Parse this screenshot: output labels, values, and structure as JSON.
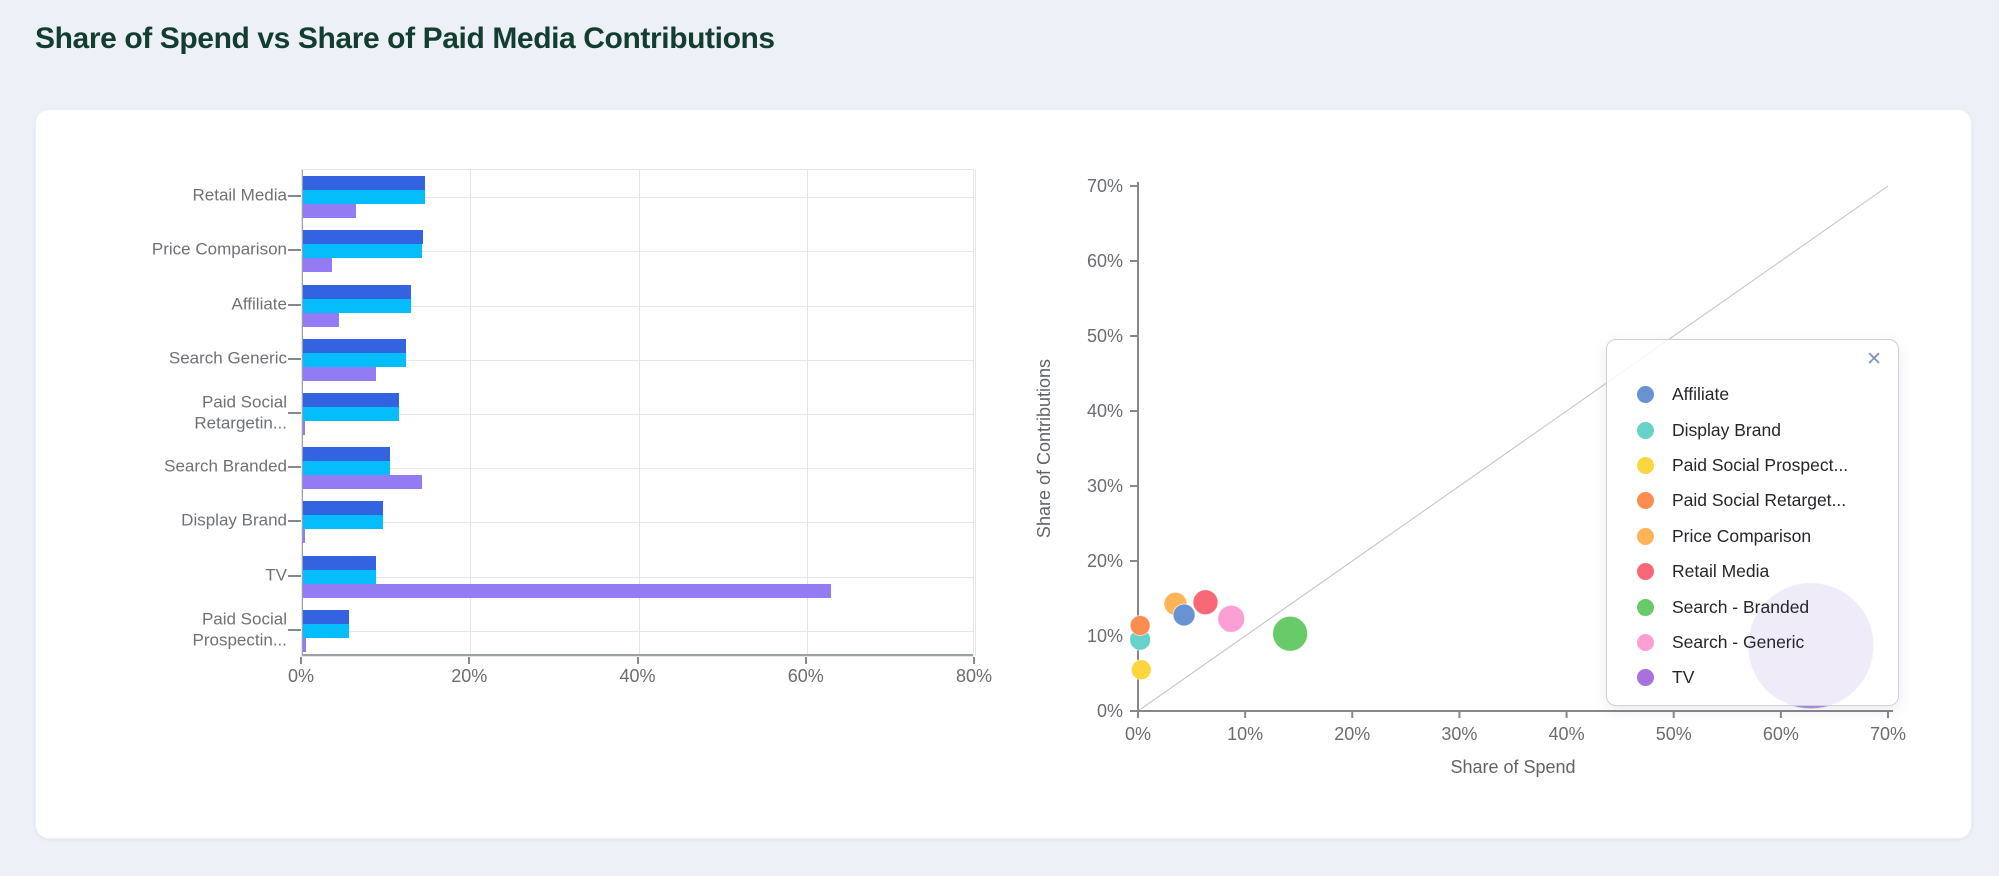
{
  "page": {
    "title": "Share of Spend vs Share of Paid Media Contributions",
    "background_color": "#edf1f7",
    "title_color": "#133d2e",
    "card_color": "#ffffff"
  },
  "chart_data": [
    {
      "type": "bar",
      "orientation": "horizontal",
      "title": "",
      "categories": [
        "Retail Media",
        "Price Comparison",
        "Affiliate",
        "Search Generic",
        "Paid Social Retargetin...",
        "Search Branded",
        "Display Brand",
        "TV",
        "Paid Social Prospectin..."
      ],
      "series": [
        {
          "id": "contribution-blue",
          "color": "#3463e2",
          "values": [
            14.5,
            14.3,
            12.8,
            12.3,
            11.4,
            10.3,
            9.5,
            8.7,
            5.5
          ]
        },
        {
          "id": "contribution-cyan",
          "color": "#05bdfb",
          "values": [
            14.5,
            14.2,
            12.8,
            12.3,
            11.4,
            10.3,
            9.5,
            8.7,
            5.5
          ]
        },
        {
          "id": "spend-purple",
          "color": "#937bf4",
          "values": [
            6.3,
            3.5,
            4.3,
            8.7,
            0.2,
            14.2,
            0.2,
            62.8,
            0.3
          ]
        }
      ],
      "xlim": [
        0,
        80
      ],
      "x_ticks": [
        0,
        20,
        40,
        60,
        80
      ],
      "x_tick_labels": [
        "0%",
        "20%",
        "40%",
        "60%",
        "80%"
      ],
      "grid": true,
      "xlabel": "",
      "ylabel": ""
    },
    {
      "type": "scatter",
      "xlabel": "Share of Spend",
      "ylabel": "Share of Contributions",
      "xlim": [
        0,
        70
      ],
      "ylim": [
        0,
        70
      ],
      "x_ticks": [
        0,
        10,
        20,
        30,
        40,
        50,
        60,
        70
      ],
      "x_tick_labels": [
        "0%",
        "10%",
        "20%",
        "30%",
        "40%",
        "50%",
        "60%",
        "70%"
      ],
      "y_ticks": [
        0,
        10,
        20,
        30,
        40,
        50,
        60,
        70
      ],
      "y_tick_labels": [
        "0%",
        "10%",
        "20%",
        "30%",
        "40%",
        "50%",
        "60%",
        "70%"
      ],
      "grid": false,
      "diagonal_reference_line": true,
      "points": [
        {
          "label": "Affiliate",
          "x": 4.3,
          "y": 12.8,
          "r": 11,
          "color": "#6992d2"
        },
        {
          "label": "Display Brand",
          "x": 0.2,
          "y": 9.5,
          "r": 10.5,
          "color": "#66d2c8"
        },
        {
          "label": "Paid Social Prospect...",
          "x": 0.3,
          "y": 5.5,
          "r": 10,
          "color": "#fdd53e"
        },
        {
          "label": "Paid Social Retarget...",
          "x": 0.2,
          "y": 11.4,
          "r": 10,
          "color": "#fb8d50"
        },
        {
          "label": "Price Comparison",
          "x": 3.5,
          "y": 14.3,
          "r": 11.5,
          "color": "#fdb457"
        },
        {
          "label": "Retail Media",
          "x": 6.3,
          "y": 14.5,
          "r": 12.5,
          "color": "#f96876"
        },
        {
          "label": "Search - Branded",
          "x": 14.2,
          "y": 10.3,
          "r": 17.5,
          "color": "#68ca68"
        },
        {
          "label": "Search - Generic",
          "x": 8.7,
          "y": 12.3,
          "r": 13.5,
          "color": "#fb9fd4"
        },
        {
          "label": "TV",
          "x": 62.8,
          "y": 8.7,
          "r": 63,
          "color": "#9a75d4",
          "fill_opacity": 0.8
        }
      ],
      "legend": {
        "position": "right",
        "close_icon": "✕",
        "items": [
          {
            "label": "Affiliate",
            "color": "#6992d2"
          },
          {
            "label": "Display Brand",
            "color": "#66d2c8"
          },
          {
            "label": "Paid Social Prospect...",
            "color": "#fdd53e"
          },
          {
            "label": "Paid Social Retarget...",
            "color": "#fb8d50"
          },
          {
            "label": "Price Comparison",
            "color": "#fdb457"
          },
          {
            "label": "Retail Media",
            "color": "#f96876"
          },
          {
            "label": "Search - Branded",
            "color": "#68ca68"
          },
          {
            "label": "Search - Generic",
            "color": "#fb9fd4"
          },
          {
            "label": "TV",
            "color": "#a971de"
          }
        ]
      }
    }
  ]
}
